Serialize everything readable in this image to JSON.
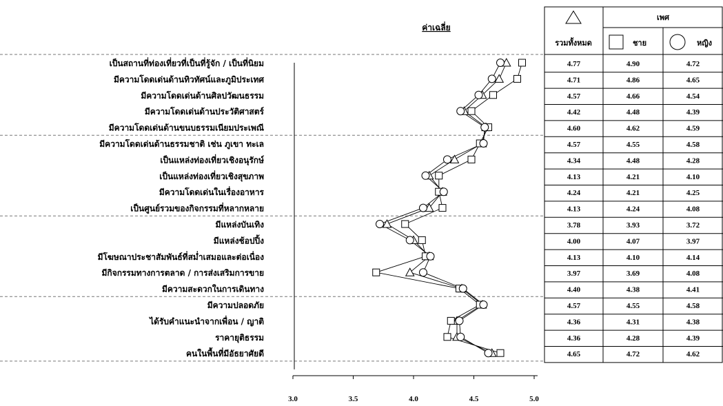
{
  "chart_data": {
    "type": "line",
    "avg_label": "ค่าเฉลี่ย",
    "xlim": [
      3.0,
      5.0
    ],
    "x_ticks": [
      "3.0",
      "3.5",
      "4.0",
      "4.5",
      "5.0"
    ],
    "categories": [
      "เป็นสถานที่ท่องเที่ยวที่เป็นที่รู้จัก / เป็นที่นิยม",
      "มีความโดดเด่นด้านทิวทัศน์และภูมิประเทศ",
      "มีความโดดเด่นด้านศิลปวัฒนธรรม",
      "มีความโดดเด่นด้านประวัติศาสตร์",
      "มีความโดดเด่นด้านขนบธรรมเนียมประเพณี",
      "มีความโดดเด่นด้านธรรมชาติ เช่น ภูเขา ทะเล",
      "เป็นแหล่งท่องเที่ยวเชิงอนุรักษ์",
      "เป็นแหล่งท่องเที่ยวเชิงสุขภาพ",
      "มีความโดดเด่นในเรื่องอาหาร",
      "เป็นศูนย์รวมของกิจกรรมที่หลากหลาย",
      "มีแหล่งบันเทิง",
      "มีแหล่งช้อปปิ้ง",
      "มีโฆษณาประชาสัมพันธ์ที่สม่ำเสมอและต่อเนื่อง",
      "มีกิจกรรมทางการตลาด / การส่งเสริมการขาย",
      "มีความสะดวกในการเดินทาง",
      "มีความปลอดภัย",
      "ได้รับคำแนะนำจากเพื่อน / ญาติ",
      "ราคายุติธรรม",
      "คนในพื้นที่มีอัธยาศัยดี"
    ],
    "group_breaks_after": [
      4,
      9,
      14
    ],
    "series": [
      {
        "name": "รวมทั้งหมด",
        "marker": "triangle",
        "values": [
          4.77,
          4.71,
          4.57,
          4.42,
          4.6,
          4.57,
          4.34,
          4.13,
          4.24,
          4.13,
          3.78,
          4.0,
          4.13,
          3.97,
          4.4,
          4.57,
          4.36,
          4.36,
          4.65
        ]
      },
      {
        "name": "ชาย",
        "marker": "square",
        "values": [
          4.9,
          4.86,
          4.66,
          4.48,
          4.62,
          4.55,
          4.48,
          4.21,
          4.21,
          4.24,
          3.93,
          4.07,
          4.1,
          3.69,
          4.38,
          4.55,
          4.31,
          4.28,
          4.72
        ]
      },
      {
        "name": "หญิง",
        "marker": "circle",
        "values": [
          4.72,
          4.65,
          4.54,
          4.39,
          4.59,
          4.58,
          4.28,
          4.1,
          4.25,
          4.08,
          3.72,
          3.97,
          4.14,
          4.08,
          4.41,
          4.58,
          4.38,
          4.39,
          4.62
        ]
      }
    ],
    "table": {
      "group_header": "เพศ",
      "rows": [
        [
          "4.77",
          "4.90",
          "4.72"
        ],
        [
          "4.71",
          "4.86",
          "4.65"
        ],
        [
          "4.57",
          "4.66",
          "4.54"
        ],
        [
          "4.42",
          "4.48",
          "4.39"
        ],
        [
          "4.60",
          "4.62",
          "4.59"
        ],
        [
          "4.57",
          "4.55",
          "4.58"
        ],
        [
          "4.34",
          "4.48",
          "4.28"
        ],
        [
          "4.13",
          "4.21",
          "4.10"
        ],
        [
          "4.24",
          "4.21",
          "4.25"
        ],
        [
          "4.13",
          "4.24",
          "4.08"
        ],
        [
          "3.78",
          "3.93",
          "3.72"
        ],
        [
          "4.00",
          "4.07",
          "3.97"
        ],
        [
          "4.13",
          "4.10",
          "4.14"
        ],
        [
          "3.97",
          "3.69",
          "4.08"
        ],
        [
          "4.40",
          "4.38",
          "4.41"
        ],
        [
          "4.57",
          "4.55",
          "4.58"
        ],
        [
          "4.36",
          "4.31",
          "4.38"
        ],
        [
          "4.36",
          "4.28",
          "4.39"
        ],
        [
          "4.65",
          "4.72",
          "4.62"
        ]
      ]
    }
  }
}
